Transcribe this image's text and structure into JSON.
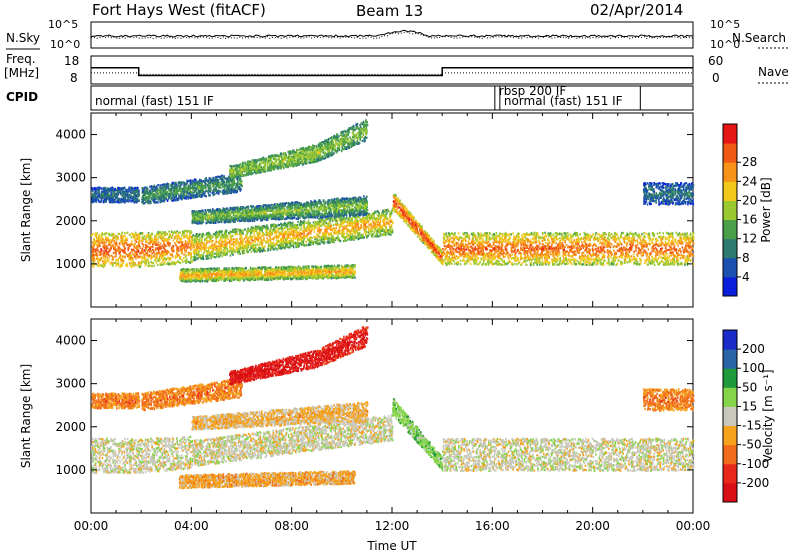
{
  "header": {
    "title": "Fort Hays West (fitACF)",
    "beam": "Beam 13",
    "date": "02/Apr/2014"
  },
  "strips": {
    "nsky_label": "N.Sky",
    "nsearch_label": "N.Search",
    "freq_label": "Freq.",
    "freq_unit": "[MHz]",
    "nave_label": "Nave",
    "cpid_label": "CPID",
    "noise_ticks_left": [
      "10^5",
      "10^0"
    ],
    "noise_ticks_right": [
      "10^5",
      "10^0"
    ],
    "freq_ticks": [
      "18",
      "8"
    ],
    "nave_ticks": [
      "60",
      "0"
    ],
    "freq_series": [
      {
        "from": 0,
        "to": 1.9,
        "value": 14
      },
      {
        "from": 1.9,
        "to": 14.0,
        "value": 10.5
      },
      {
        "from": 14.0,
        "to": 24,
        "value": 14
      }
    ],
    "nave_series": [
      {
        "from": 0,
        "to": 1.9,
        "value": 22
      },
      {
        "from": 1.9,
        "to": 14.0,
        "value": 18
      },
      {
        "from": 14.0,
        "to": 24,
        "value": 22
      }
    ]
  },
  "cpid": [
    {
      "label": "normal (fast) 151 IF",
      "start": 0.0,
      "end": 16.1
    },
    {
      "label": "rbsp 200 IF",
      "start": 16.1,
      "end": 16.3
    },
    {
      "label": "normal (fast) 151 IF",
      "start": 16.3,
      "end": 21.9
    }
  ],
  "chart_data": [
    {
      "type": "heatmap",
      "name": "power",
      "ylabel": "Slant Range [km]",
      "xlim_hours": [
        0,
        24
      ],
      "ylim": [
        0,
        4500
      ],
      "yticks": [
        "1000",
        "2000",
        "3000",
        "4000"
      ],
      "colorbar": {
        "label": "Power [dB]",
        "ticks": [
          "4",
          "8",
          "12",
          "16",
          "20",
          "24",
          "28"
        ],
        "colors": [
          "#0a1fdc",
          "#1b4fb0",
          "#2f7a6e",
          "#4aa04a",
          "#9ac830",
          "#f2c81c",
          "#f79318",
          "#f05a14",
          "#e61616"
        ]
      },
      "bands": [
        {
          "t": [
            0.0,
            1.9
          ],
          "r0": [
            950,
            950
          ],
          "r1": [
            1750,
            1750
          ],
          "c": [
            3,
            7
          ]
        },
        {
          "t": [
            0.0,
            1.9
          ],
          "r0": [
            2450,
            2450
          ],
          "r1": [
            2800,
            2800
          ],
          "c": [
            0,
            2
          ]
        },
        {
          "t": [
            1.9,
            4.0
          ],
          "r0": [
            950,
            1050
          ],
          "r1": [
            1750,
            1800
          ],
          "c": [
            2,
            7
          ]
        },
        {
          "t": [
            2.0,
            6.0
          ],
          "r0": [
            2400,
            2700
          ],
          "r1": [
            2800,
            3150
          ],
          "c": [
            0,
            3
          ]
        },
        {
          "t": [
            4.0,
            12.0
          ],
          "r0": [
            1100,
            1700
          ],
          "r1": [
            1700,
            2300
          ],
          "c": [
            1,
            6
          ]
        },
        {
          "t": [
            4.0,
            11.0
          ],
          "r0": [
            1950,
            2150
          ],
          "r1": [
            2250,
            2600
          ],
          "c": [
            0,
            4
          ]
        },
        {
          "t": [
            3.5,
            10.5
          ],
          "r0": [
            600,
            700
          ],
          "r1": [
            900,
            1000
          ],
          "c": [
            1,
            6
          ]
        },
        {
          "t": [
            5.5,
            9.0
          ],
          "r0": [
            3000,
            3400
          ],
          "r1": [
            3300,
            3800
          ],
          "c": [
            2,
            4
          ]
        },
        {
          "t": [
            9.0,
            11.0
          ],
          "r0": [
            3400,
            3900
          ],
          "r1": [
            3800,
            4400
          ],
          "c": [
            1,
            4
          ]
        },
        {
          "t": [
            12.0,
            14.0
          ],
          "r0": [
            2300,
            1000
          ],
          "r1": [
            2700,
            1300
          ],
          "c": [
            2,
            8
          ]
        },
        {
          "t": [
            14.0,
            24.0
          ],
          "r0": [
            1000,
            1000
          ],
          "r1": [
            1750,
            1750
          ],
          "c": [
            2,
            7
          ]
        },
        {
          "t": [
            22.0,
            24.0
          ],
          "r0": [
            2400,
            2400
          ],
          "r1": [
            2900,
            2900
          ],
          "c": [
            0,
            2
          ]
        }
      ]
    },
    {
      "type": "heatmap",
      "name": "velocity",
      "ylabel": "Slant Range [km]",
      "xlabel": "Time UT",
      "xlim_hours": [
        0,
        24
      ],
      "ylim": [
        0,
        4500
      ],
      "yticks": [
        "1000",
        "2000",
        "3000",
        "4000"
      ],
      "xticks": [
        "00:00",
        "04:00",
        "08:00",
        "12:00",
        "16:00",
        "20:00",
        "00:00"
      ],
      "colorbar": {
        "label": "Velocity [m s⁻¹]",
        "ticks": [
          "200",
          "100",
          "50",
          "15",
          "-15",
          "-50",
          "-100",
          "-200"
        ],
        "colors": [
          "#1b2bc8",
          "#2a64a8",
          "#1f9a3a",
          "#86d44a",
          "#c8c8bc",
          "#f5a21c",
          "#f06c1c",
          "#e8281a",
          "#d80e14"
        ]
      },
      "bands": [
        {
          "t": [
            0.0,
            1.9
          ],
          "r0": [
            950,
            950
          ],
          "r1": [
            1750,
            1750
          ],
          "c": [
            4,
            4
          ]
        },
        {
          "t": [
            0.0,
            1.9
          ],
          "r0": [
            2450,
            2450
          ],
          "r1": [
            2800,
            2800
          ],
          "c": [
            5,
            6
          ]
        },
        {
          "t": [
            1.9,
            4.0
          ],
          "r0": [
            950,
            1050
          ],
          "r1": [
            1750,
            1800
          ],
          "c": [
            4,
            4
          ]
        },
        {
          "t": [
            2.0,
            6.0
          ],
          "r0": [
            2400,
            2700
          ],
          "r1": [
            2800,
            3150
          ],
          "c": [
            5,
            6
          ]
        },
        {
          "t": [
            4.0,
            12.0
          ],
          "r0": [
            1100,
            1700
          ],
          "r1": [
            1700,
            2300
          ],
          "c": [
            4,
            4
          ]
        },
        {
          "t": [
            4.0,
            11.0
          ],
          "r0": [
            1950,
            2150
          ],
          "r1": [
            2250,
            2600
          ],
          "c": [
            4,
            5
          ]
        },
        {
          "t": [
            3.5,
            10.5
          ],
          "r0": [
            600,
            700
          ],
          "r1": [
            900,
            1000
          ],
          "c": [
            5,
            5
          ]
        },
        {
          "t": [
            5.5,
            9.0
          ],
          "r0": [
            3000,
            3400
          ],
          "r1": [
            3300,
            3800
          ],
          "c": [
            7,
            8
          ]
        },
        {
          "t": [
            9.0,
            11.0
          ],
          "r0": [
            3400,
            3900
          ],
          "r1": [
            3800,
            4400
          ],
          "c": [
            6,
            8
          ]
        },
        {
          "t": [
            12.0,
            14.0
          ],
          "r0": [
            2300,
            1000
          ],
          "r1": [
            2700,
            1300
          ],
          "c": [
            3,
            3
          ]
        },
        {
          "t": [
            14.0,
            24.0
          ],
          "r0": [
            1000,
            1000
          ],
          "r1": [
            1750,
            1750
          ],
          "c": [
            4,
            4
          ]
        },
        {
          "t": [
            22.0,
            24.0
          ],
          "r0": [
            2400,
            2400
          ],
          "r1": [
            2900,
            2900
          ],
          "c": [
            5,
            6
          ]
        }
      ]
    }
  ]
}
